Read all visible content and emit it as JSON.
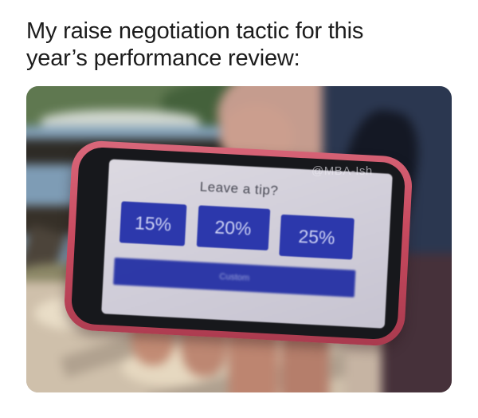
{
  "caption": {
    "lines": [
      "My raise negotiation tactic for this",
      "year’s performance review:"
    ],
    "full_text": "My raise negotiation tactic for this year’s performance review:"
  },
  "photo": {
    "watermark": "@MBA-Ish",
    "phone_screen": {
      "title": "Leave a tip?",
      "tip_options": [
        "15%",
        "20%",
        "25%"
      ],
      "custom_label": "Custom"
    },
    "colors": {
      "tip_button_blue": "#2c38ac",
      "custom_button_blue": "#2531a5",
      "phone_case_red": "#c84a5f",
      "screen_background": "#d0cdd8"
    }
  }
}
